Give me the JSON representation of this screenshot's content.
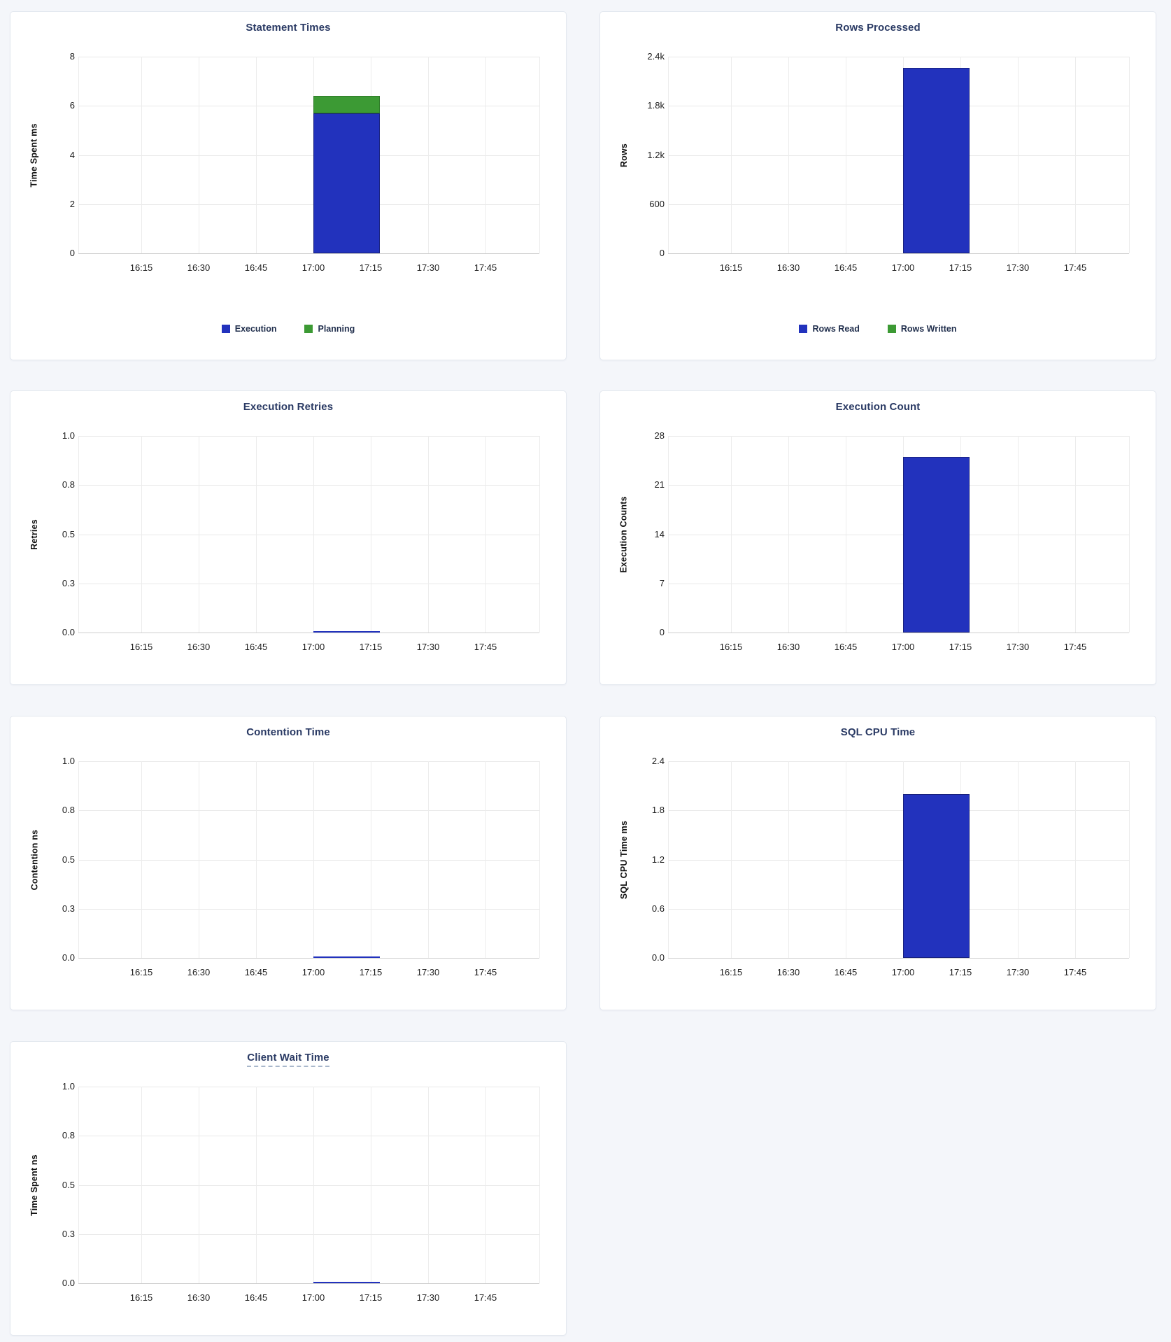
{
  "page": {
    "background": "#f4f6fa",
    "card_background": "#ffffff",
    "card_border": "#e3e8ef",
    "title_color": "#2a3a64",
    "tick_color": "#1d1d1d",
    "gridline_color": "#e8e8e8",
    "baseline_color": "#cfcfcf"
  },
  "colors": {
    "bar_blue": "#2232bd",
    "bar_blue_stroke": "#18217f",
    "bar_green": "#3c9a34",
    "bar_green_stroke": "#2d7a27"
  },
  "chart_data": [
    {
      "id": "statement-times",
      "type": "bar",
      "title": "Statement Times",
      "xlabel": "",
      "ylabel": "Time Spent ms",
      "ylim": [
        0,
        8
      ],
      "y_tick_labels": [
        "0",
        "2",
        "4",
        "6",
        "8"
      ],
      "x_ticks": [
        "16:15",
        "16:30",
        "16:45",
        "17:00",
        "17:15",
        "17:30",
        "17:45"
      ],
      "x_range": [
        "17:00",
        "17:17"
      ],
      "grid": true,
      "stacked": true,
      "legend_position": "bottom",
      "series": [
        {
          "name": "Execution",
          "value": 5.7,
          "color": "#2232bd",
          "stroke": "#18217f"
        },
        {
          "name": "Planning",
          "value": 0.7,
          "color": "#3c9a34",
          "stroke": "#2d7a27"
        }
      ]
    },
    {
      "id": "rows-processed",
      "type": "bar",
      "title": "Rows Processed",
      "xlabel": "",
      "ylabel": "Rows",
      "ylim": [
        0,
        2400
      ],
      "y_tick_labels": [
        "0",
        "600",
        "1.2k",
        "1.8k",
        "2.4k"
      ],
      "x_ticks": [
        "16:15",
        "16:30",
        "16:45",
        "17:00",
        "17:15",
        "17:30",
        "17:45"
      ],
      "x_range": [
        "17:00",
        "17:17"
      ],
      "grid": true,
      "stacked": true,
      "legend_position": "bottom",
      "series": [
        {
          "name": "Rows Read",
          "value": 2260,
          "color": "#2232bd",
          "stroke": "#18217f"
        },
        {
          "name": "Rows Written",
          "value": 0,
          "color": "#3c9a34",
          "stroke": "#2d7a27"
        }
      ]
    },
    {
      "id": "execution-retries",
      "type": "line",
      "title": "Execution Retries",
      "xlabel": "",
      "ylabel": "Retries",
      "ylim": [
        0,
        1
      ],
      "y_tick_labels": [
        "0.0",
        "0.3",
        "0.5",
        "0.8",
        "1.0"
      ],
      "x_ticks": [
        "16:15",
        "16:30",
        "16:45",
        "17:00",
        "17:15",
        "17:30",
        "17:45"
      ],
      "x_range": [
        "17:00",
        "17:17"
      ],
      "grid": true,
      "legend_position": null,
      "series": [
        {
          "name": "Retries",
          "value": 0,
          "color": "#2232bd",
          "stroke": "#18217f"
        }
      ]
    },
    {
      "id": "execution-count",
      "type": "bar",
      "title": "Execution Count",
      "xlabel": "",
      "ylabel": "Execution Counts",
      "ylim": [
        0,
        28
      ],
      "y_tick_labels": [
        "0",
        "7",
        "14",
        "21",
        "28"
      ],
      "x_ticks": [
        "16:15",
        "16:30",
        "16:45",
        "17:00",
        "17:15",
        "17:30",
        "17:45"
      ],
      "x_range": [
        "17:00",
        "17:17"
      ],
      "grid": true,
      "legend_position": null,
      "series": [
        {
          "name": "Execution Count",
          "value": 25,
          "color": "#2232bd",
          "stroke": "#18217f"
        }
      ]
    },
    {
      "id": "contention-time",
      "type": "line",
      "title": "Contention Time",
      "xlabel": "",
      "ylabel": "Contention ns",
      "ylim": [
        0,
        1
      ],
      "y_tick_labels": [
        "0.0",
        "0.3",
        "0.5",
        "0.8",
        "1.0"
      ],
      "x_ticks": [
        "16:15",
        "16:30",
        "16:45",
        "17:00",
        "17:15",
        "17:30",
        "17:45"
      ],
      "x_range": [
        "17:00",
        "17:17"
      ],
      "grid": true,
      "legend_position": null,
      "series": [
        {
          "name": "Contention",
          "value": 0,
          "color": "#2232bd",
          "stroke": "#18217f"
        }
      ]
    },
    {
      "id": "sql-cpu-time",
      "type": "bar",
      "title": "SQL CPU Time",
      "xlabel": "",
      "ylabel": "SQL CPU Time ms",
      "ylim": [
        0,
        2.4
      ],
      "y_tick_labels": [
        "0.0",
        "0.6",
        "1.2",
        "1.8",
        "2.4"
      ],
      "x_ticks": [
        "16:15",
        "16:30",
        "16:45",
        "17:00",
        "17:15",
        "17:30",
        "17:45"
      ],
      "x_range": [
        "17:00",
        "17:17"
      ],
      "grid": true,
      "legend_position": null,
      "series": [
        {
          "name": "SQL CPU Time",
          "value": 2.0,
          "color": "#2232bd",
          "stroke": "#18217f"
        }
      ]
    },
    {
      "id": "client-wait-time",
      "type": "line",
      "title": "Client Wait Time",
      "title_has_tooltip_underline": true,
      "xlabel": "",
      "ylabel": "Time Spent ns",
      "ylim": [
        0,
        1
      ],
      "y_tick_labels": [
        "0.0",
        "0.3",
        "0.5",
        "0.8",
        "1.0"
      ],
      "x_ticks": [
        "16:15",
        "16:30",
        "16:45",
        "17:00",
        "17:15",
        "17:30",
        "17:45"
      ],
      "x_range": [
        "17:00",
        "17:17"
      ],
      "grid": true,
      "legend_position": null,
      "series": [
        {
          "name": "Client Wait Time",
          "value": 0,
          "color": "#2232bd",
          "stroke": "#18217f"
        }
      ]
    }
  ]
}
